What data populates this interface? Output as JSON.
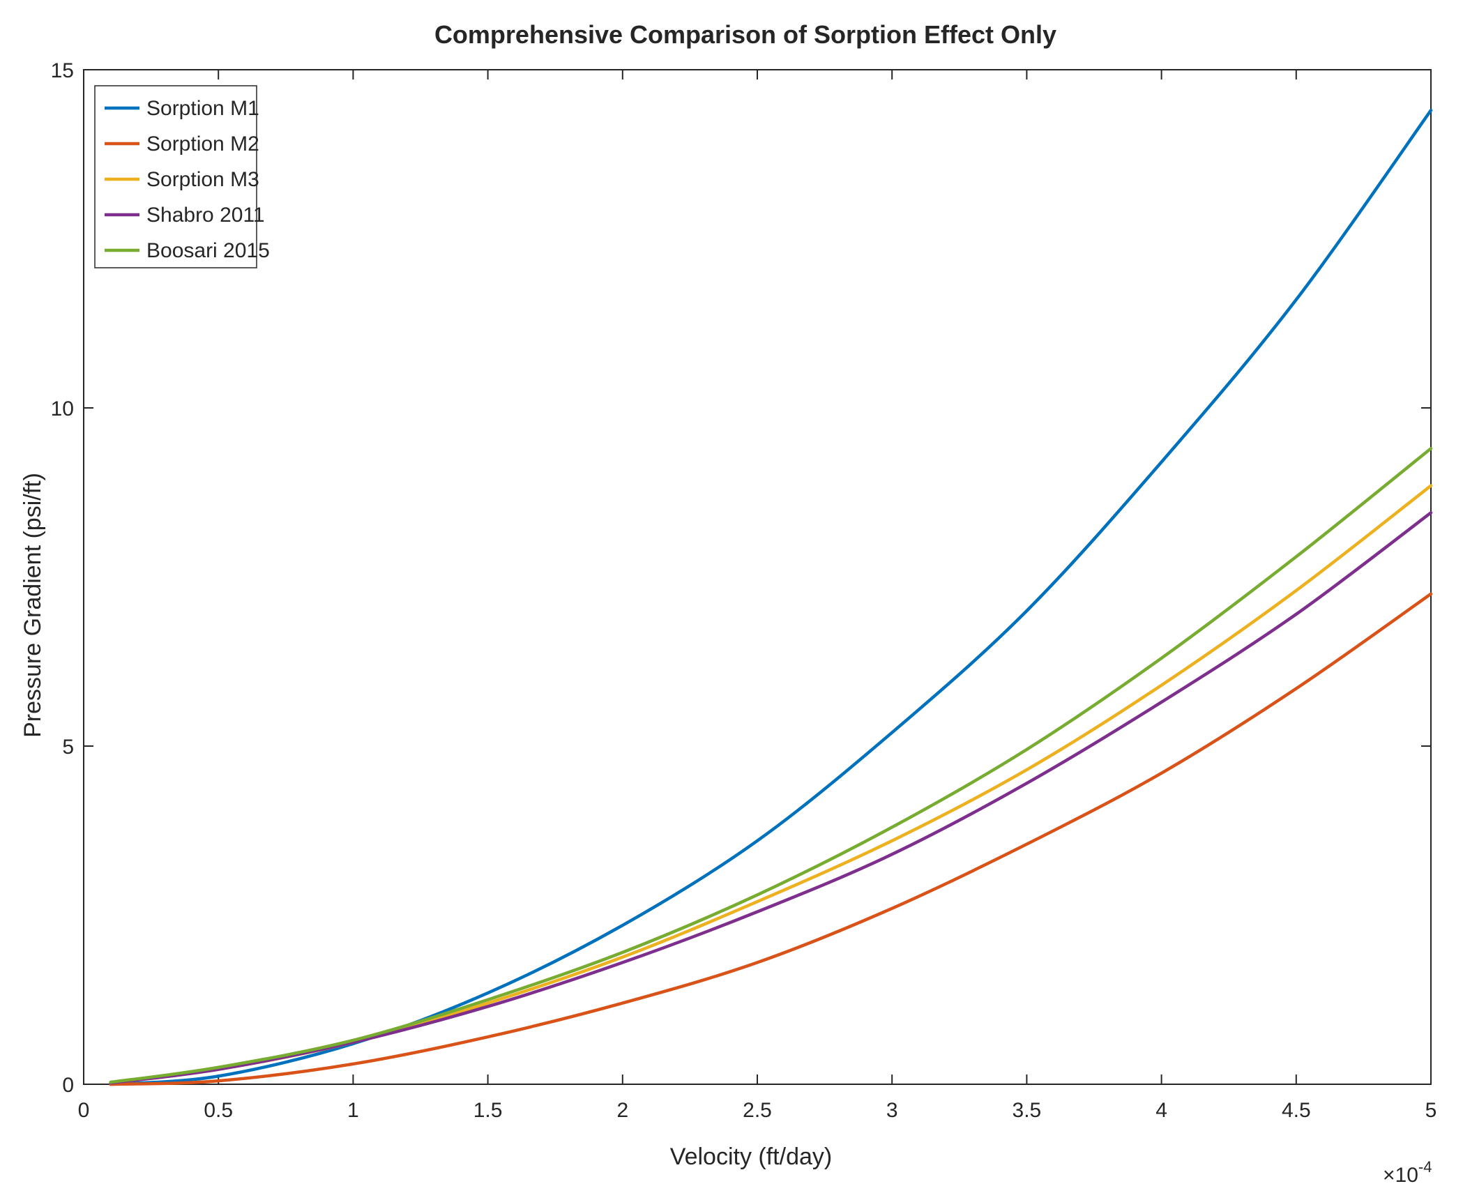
{
  "chart_data": {
    "type": "line",
    "title": "Comprehensive Comparison of Sorption Effect Only",
    "xlabel": "Velocity (ft/day)",
    "ylabel": "Pressure Gradient (psi/ft)",
    "x_exponent_label": "×10",
    "x_exponent_power": "-4",
    "xlim": [
      0,
      5
    ],
    "ylim": [
      0,
      15
    ],
    "xticks": [
      "0",
      "0.5",
      "1",
      "1.5",
      "2",
      "2.5",
      "3",
      "3.5",
      "4",
      "4.5",
      "5"
    ],
    "yticks": [
      "0",
      "5",
      "10",
      "15"
    ],
    "xtick_values": [
      0,
      0.5,
      1,
      1.5,
      2,
      2.5,
      3,
      3.5,
      4,
      4.5,
      5
    ],
    "ytick_values": [
      0,
      5,
      10,
      15
    ],
    "legend_position": "top-left",
    "x": [
      0.1,
      0.5,
      1,
      1.5,
      2,
      2.5,
      3,
      3.5,
      4,
      4.5,
      5
    ],
    "series": [
      {
        "name": "Sorption M1",
        "color": "#0072BD",
        "values": [
          0.0,
          0.12,
          0.6,
          1.35,
          2.35,
          3.6,
          5.2,
          7.0,
          9.2,
          11.6,
          14.4
        ]
      },
      {
        "name": "Sorption M2",
        "color": "#D95319",
        "values": [
          0.0,
          0.05,
          0.3,
          0.7,
          1.2,
          1.8,
          2.6,
          3.55,
          4.6,
          5.85,
          7.25
        ]
      },
      {
        "name": "Sorption M3",
        "color": "#EDB120",
        "values": [
          0.02,
          0.22,
          0.62,
          1.2,
          1.88,
          2.7,
          3.6,
          4.65,
          5.9,
          7.3,
          8.85
        ]
      },
      {
        "name": "Shabro 2011",
        "color": "#7E2F8E",
        "values": [
          0.02,
          0.22,
          0.62,
          1.15,
          1.8,
          2.55,
          3.4,
          4.45,
          5.65,
          6.95,
          8.45
        ]
      },
      {
        "name": "Boosari 2015",
        "color": "#77AC30",
        "values": [
          0.03,
          0.25,
          0.65,
          1.25,
          1.95,
          2.8,
          3.8,
          4.95,
          6.3,
          7.8,
          9.4
        ]
      }
    ]
  }
}
